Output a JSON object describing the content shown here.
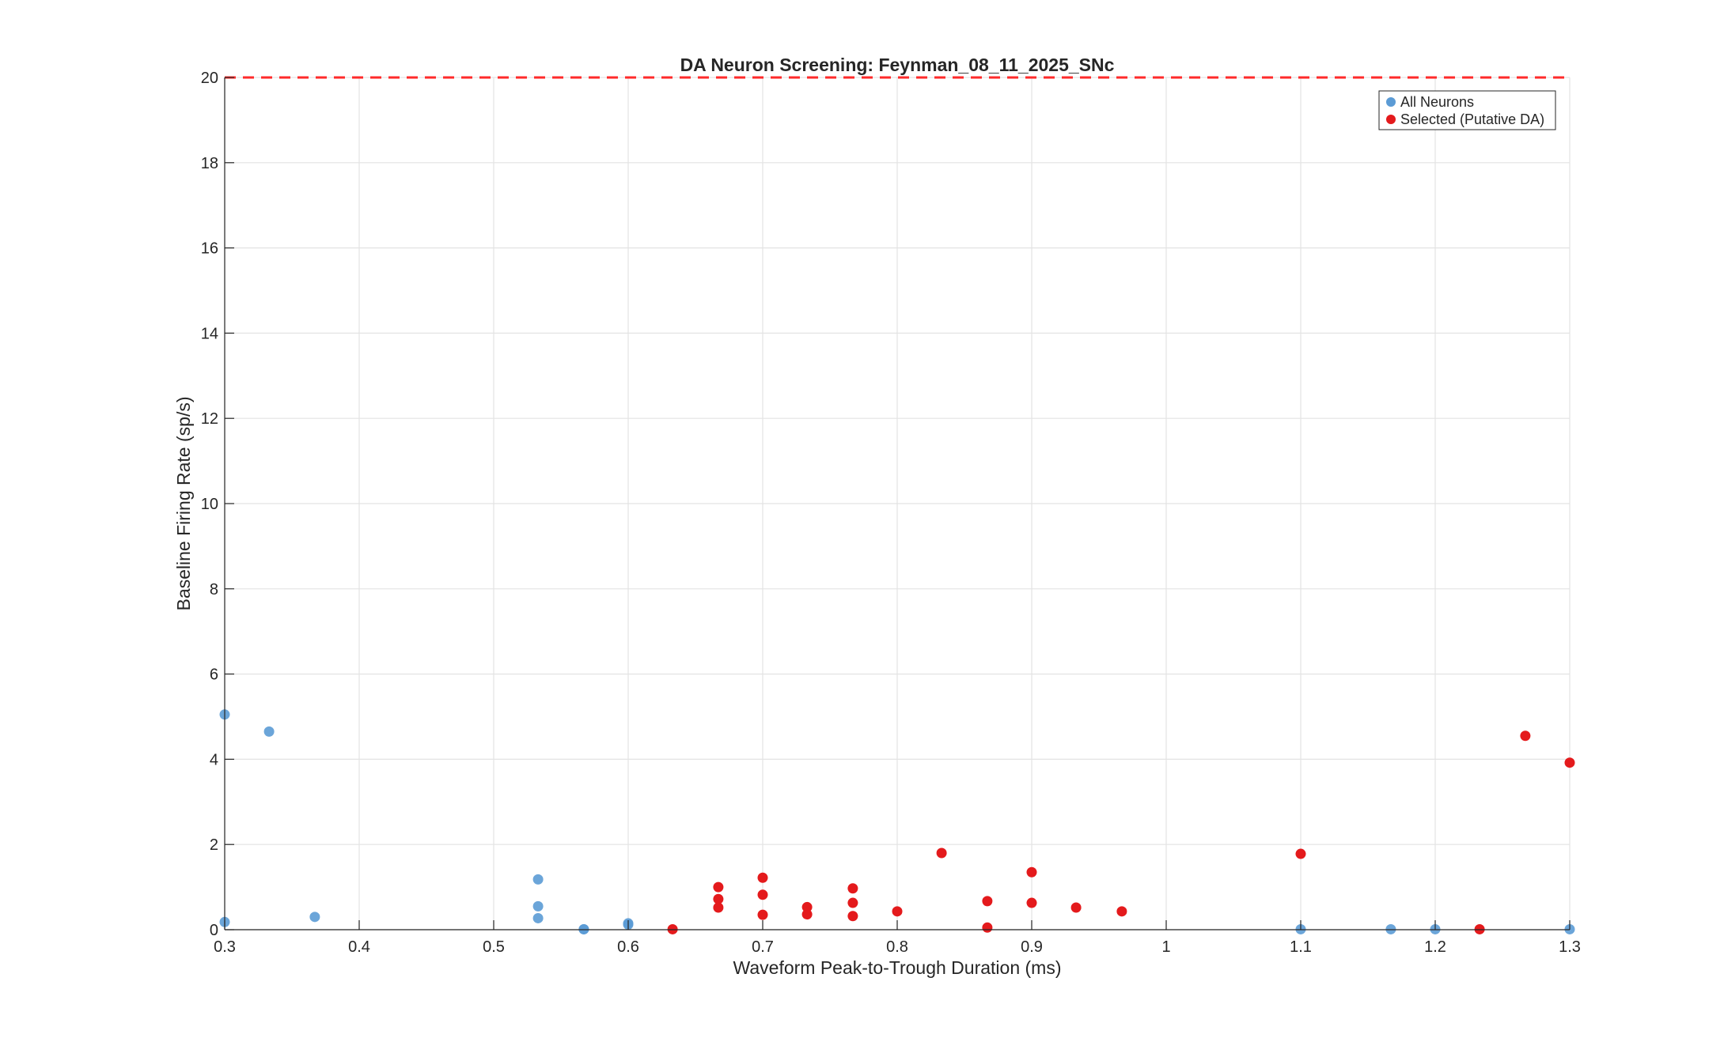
{
  "chart_data": {
    "type": "scatter",
    "title": "DA Neuron Screening: Feynman_08_11_2025_SNc",
    "xlabel": "Waveform Peak-to-Trough Duration (ms)",
    "ylabel": "Baseline Firing Rate (sp/s)",
    "xlim": [
      0.3,
      1.3
    ],
    "ylim": [
      0,
      20
    ],
    "xticks": [
      0.3,
      0.4,
      0.5,
      0.6,
      0.7,
      0.8,
      0.9,
      1,
      1.1,
      1.2,
      1.3
    ],
    "yticks": [
      0,
      2,
      4,
      6,
      8,
      10,
      12,
      14,
      16,
      18,
      20
    ],
    "xtick_labels": [
      "0.3",
      "0.4",
      "0.5",
      "0.6",
      "0.7",
      "0.8",
      "0.9",
      "1",
      "1.1",
      "1.2",
      "1.3"
    ],
    "ytick_labels": [
      "0",
      "2",
      "4",
      "6",
      "8",
      "10",
      "12",
      "14",
      "16",
      "18",
      "20"
    ],
    "grid": true,
    "legend_position": "top-right",
    "threshold_line": {
      "y": 20,
      "color": "#ff2a2a",
      "style": "dashed"
    },
    "series": [
      {
        "name": "All Neurons",
        "color": "#5b9bd5",
        "points": [
          [
            0.3,
            5.05
          ],
          [
            0.3,
            0.18
          ],
          [
            0.333,
            4.65
          ],
          [
            0.367,
            0.3
          ],
          [
            0.533,
            1.18
          ],
          [
            0.533,
            0.55
          ],
          [
            0.533,
            0.27
          ],
          [
            0.567,
            0.01
          ],
          [
            0.567,
            0.01
          ],
          [
            0.6,
            0.15
          ],
          [
            0.6,
            0.12
          ],
          [
            1.1,
            0.01
          ],
          [
            1.167,
            0.01
          ],
          [
            1.2,
            0.01
          ],
          [
            1.3,
            0.01
          ]
        ]
      },
      {
        "name": "Selected (Putative DA)",
        "color": "#e41a1c",
        "points": [
          [
            0.633,
            0.01
          ],
          [
            0.667,
            1.0
          ],
          [
            0.667,
            0.72
          ],
          [
            0.667,
            0.52
          ],
          [
            0.7,
            1.22
          ],
          [
            0.7,
            0.82
          ],
          [
            0.7,
            0.35
          ],
          [
            0.733,
            0.53
          ],
          [
            0.733,
            0.36
          ],
          [
            0.767,
            0.97
          ],
          [
            0.767,
            0.63
          ],
          [
            0.767,
            0.32
          ],
          [
            0.8,
            0.43
          ],
          [
            0.833,
            1.8
          ],
          [
            0.867,
            0.67
          ],
          [
            0.867,
            0.05
          ],
          [
            0.9,
            1.35
          ],
          [
            0.9,
            0.63
          ],
          [
            0.933,
            0.52
          ],
          [
            0.967,
            0.43
          ],
          [
            1.1,
            1.78
          ],
          [
            1.233,
            0.01
          ],
          [
            1.267,
            4.55
          ],
          [
            1.3,
            3.92
          ]
        ]
      }
    ]
  }
}
